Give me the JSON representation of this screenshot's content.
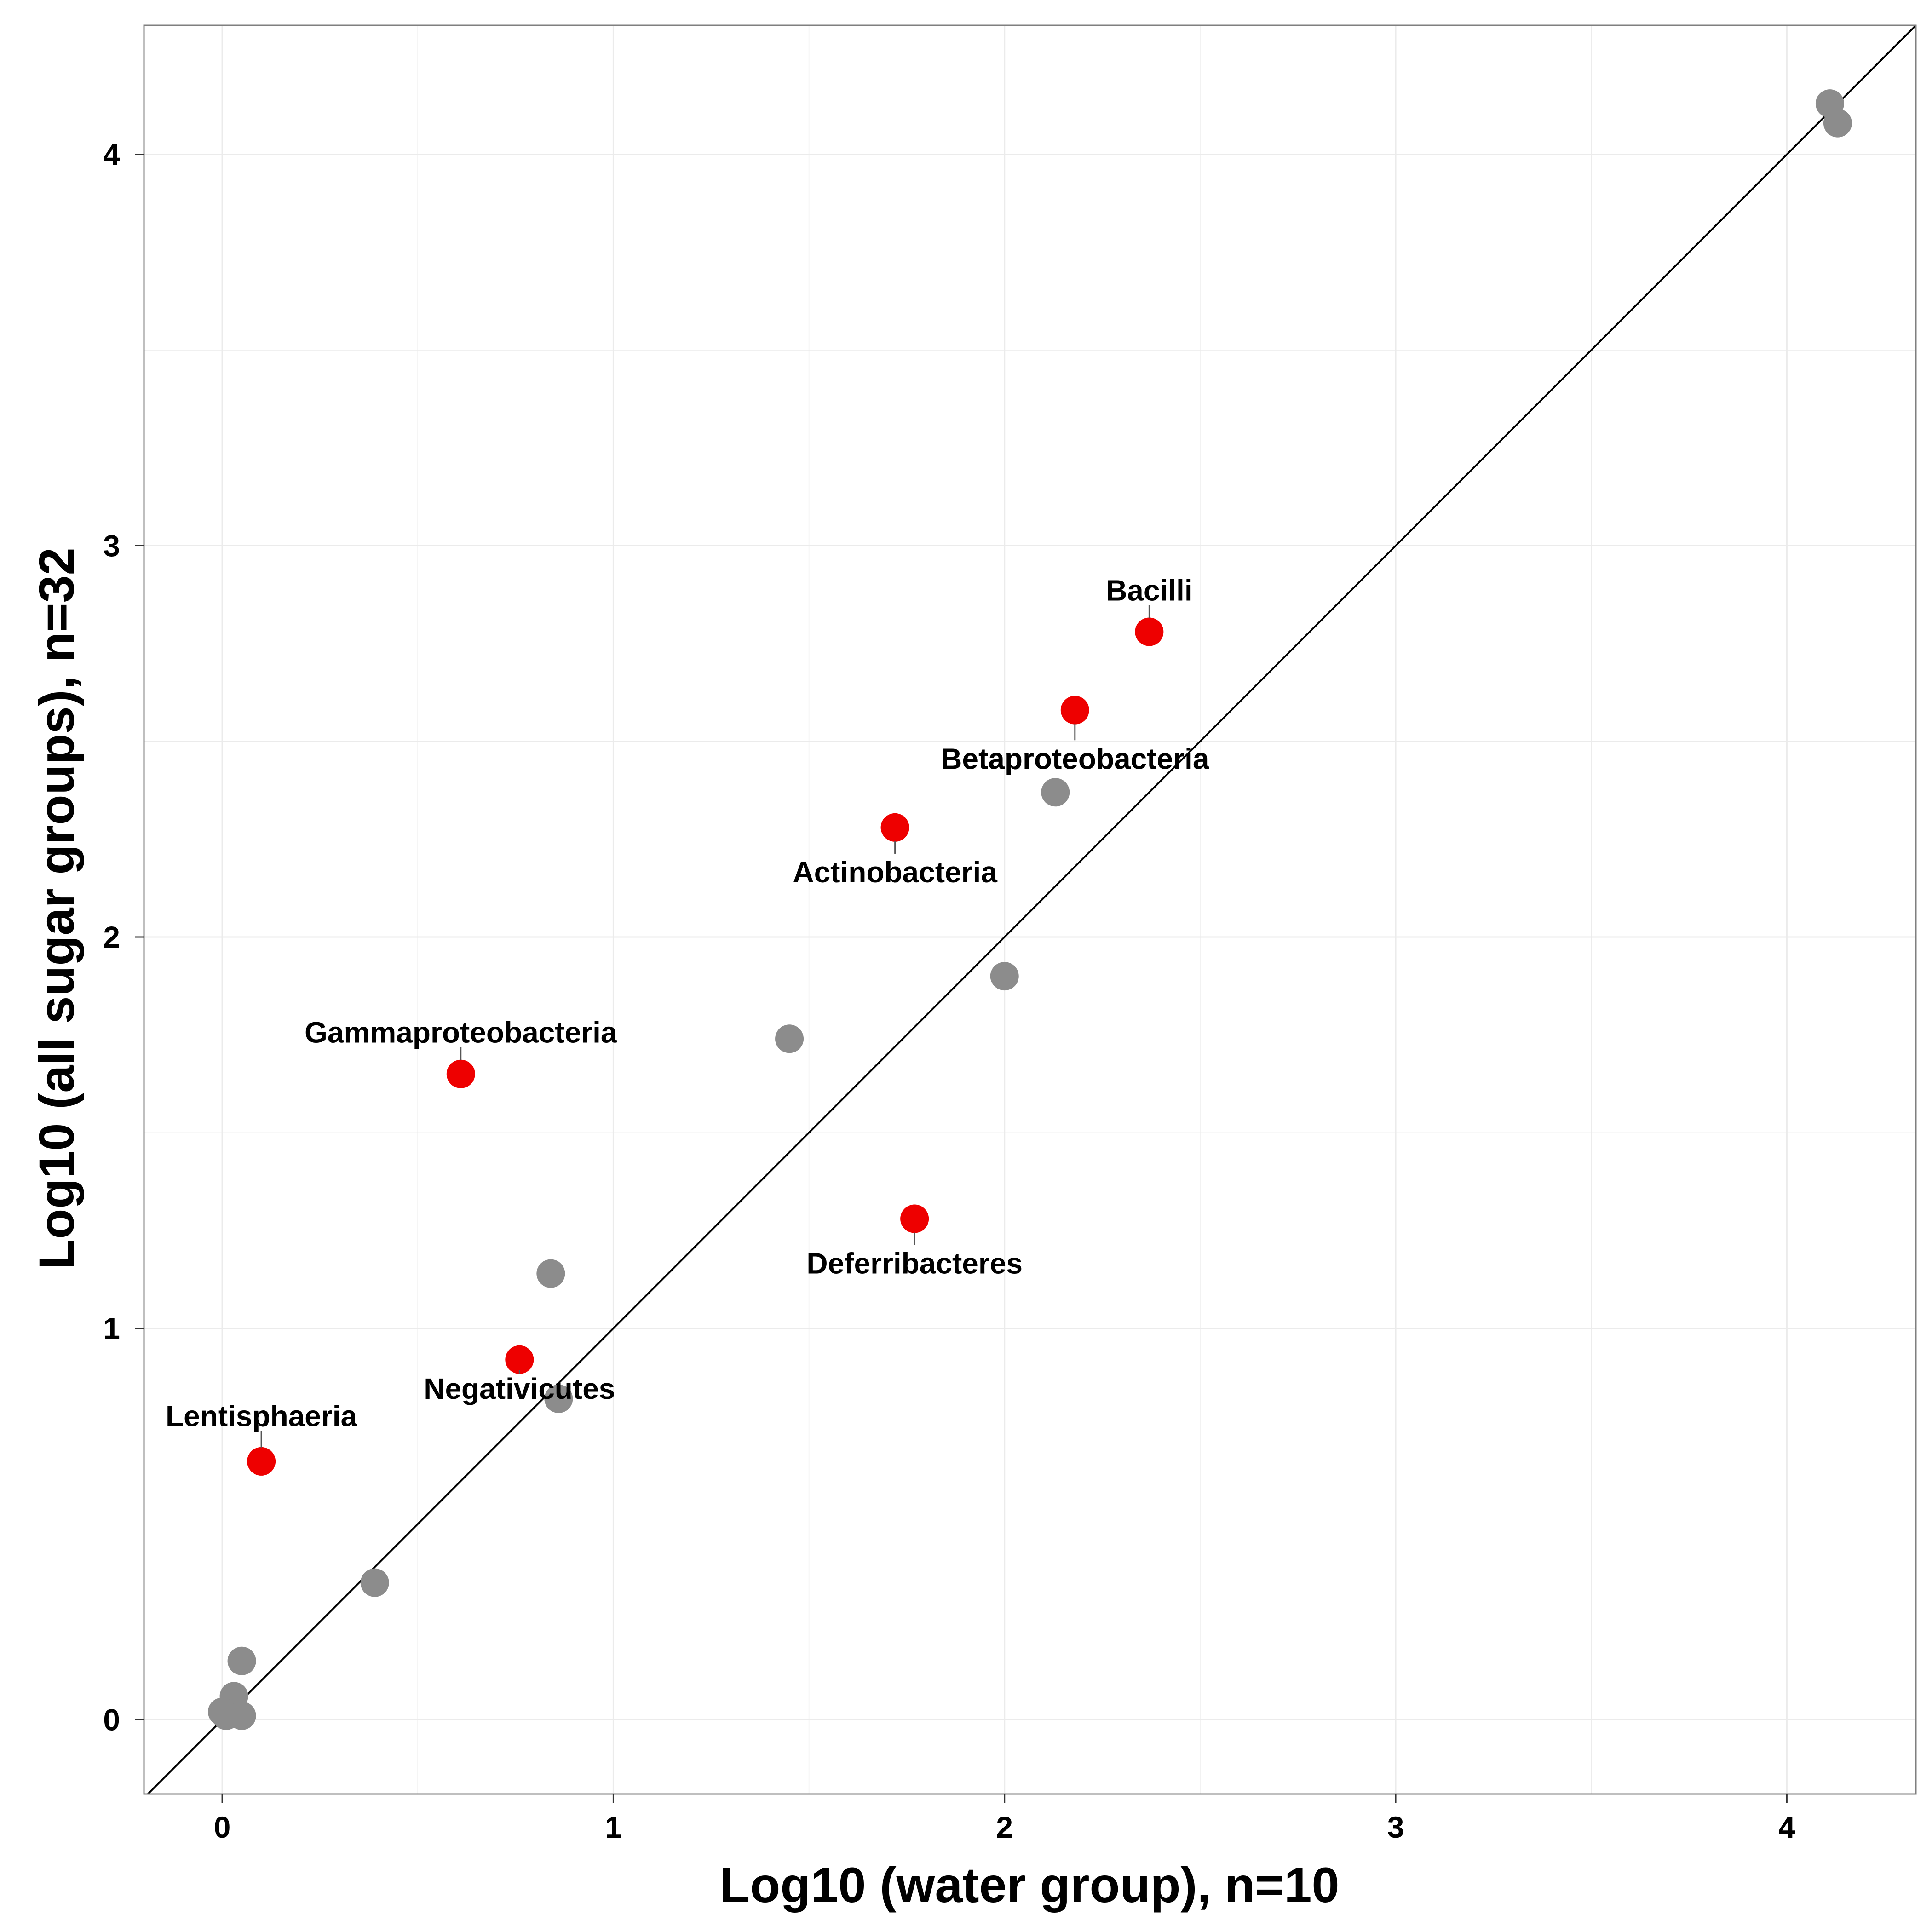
{
  "chart_data": {
    "type": "scatter",
    "title": "",
    "xlabel": "Log10 (water group), n=10",
    "ylabel": "Log10 (all sugar groups), n=32",
    "xlim": [
      -0.2,
      4.33
    ],
    "ylim": [
      -0.19,
      4.33
    ],
    "xticks": [
      0,
      1,
      2,
      3,
      4
    ],
    "yticks": [
      0,
      1,
      2,
      3,
      4
    ],
    "grid": true,
    "reference_line": "y = x",
    "colors": {
      "highlighted": "#ee0000",
      "other": "#8c8c8c",
      "grid": "#ebebeb",
      "frame": "#7f7f7f"
    },
    "series": [
      {
        "points": [
          {
            "x": 4.11,
            "y": 4.13
          },
          {
            "x": 4.13,
            "y": 4.08
          },
          {
            "x": 2.13,
            "y": 2.37
          },
          {
            "x": 2.0,
            "y": 1.9
          },
          {
            "x": 1.45,
            "y": 1.74
          },
          {
            "x": 0.84,
            "y": 1.14
          },
          {
            "x": 0.86,
            "y": 0.82
          },
          {
            "x": 0.39,
            "y": 0.35
          },
          {
            "x": 0.05,
            "y": 0.15
          },
          {
            "x": 0.03,
            "y": 0.06
          },
          {
            "x": 0.0,
            "y": 0.02
          },
          {
            "x": 0.01,
            "y": 0.01
          },
          {
            "x": 0.05,
            "y": 0.01
          }
        ]
      },
      {
        "points": [
          {
            "label": "Bacilli",
            "x": 2.37,
            "y": 2.78
          },
          {
            "label": "Betaproteobacteria",
            "x": 2.18,
            "y": 2.58
          },
          {
            "label": "Actinobacteria",
            "x": 1.72,
            "y": 2.28
          },
          {
            "label": "Gammaproteobacteria",
            "x": 0.61,
            "y": 1.65
          },
          {
            "label": "Deferribacteres",
            "x": 1.77,
            "y": 1.28
          },
          {
            "label": "Negativicutes",
            "x": 0.76,
            "y": 0.92
          },
          {
            "label": "Lentisphaeria",
            "x": 0.1,
            "y": 0.66
          }
        ]
      }
    ],
    "annotations": [
      {
        "label": "Bacilli",
        "x": 2.37,
        "y": 2.86
      },
      {
        "label": "Betaproteobacteria",
        "x": 2.18,
        "y": 2.43
      },
      {
        "label": "Actinobacteria",
        "x": 1.72,
        "y": 2.14
      },
      {
        "label": "Gammaproteobacteria",
        "x": 0.61,
        "y": 1.73
      },
      {
        "label": "Deferribacteres",
        "x": 1.77,
        "y": 1.14
      },
      {
        "label": "Negativicutes",
        "x": 0.76,
        "y": 0.82
      },
      {
        "label": "Lentisphaeria",
        "x": 0.1,
        "y": 0.75
      }
    ]
  }
}
